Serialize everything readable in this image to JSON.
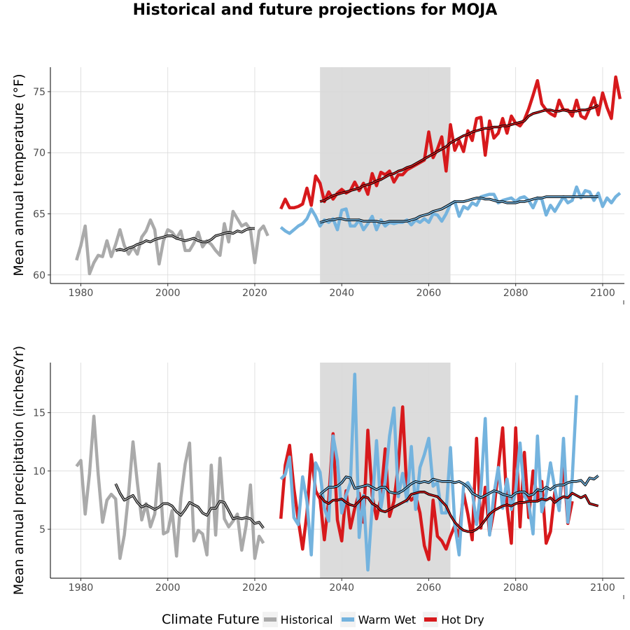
{
  "title": "Historical and future projections for MOJA",
  "legend": {
    "title": "Climate Future",
    "items": [
      {
        "label": "Historical",
        "color": "#aaaaaa"
      },
      {
        "label": "Warm Wet",
        "color": "#74b3de"
      },
      {
        "label": "Hot Dry",
        "color": "#d7191c"
      }
    ]
  },
  "chart_data": [
    {
      "type": "line",
      "ylabel": "Mean annual temperature (°F)",
      "xlim": [
        1973,
        2105
      ],
      "ylim": [
        59.3,
        77
      ],
      "x_ticks": [
        1980,
        2000,
        2020,
        2040,
        2060,
        2080,
        2100
      ],
      "y_ticks": [
        60,
        65,
        70,
        75
      ],
      "grid": true,
      "shaded_period": [
        2035,
        2065
      ],
      "series": [
        {
          "name": "Historical",
          "color": "#aaaaaa",
          "x_start": 1979,
          "values": [
            61.2,
            62.4,
            64.0,
            60.1,
            61.0,
            61.6,
            61.5,
            62.8,
            61.5,
            62.5,
            63.7,
            62.4,
            61.7,
            62.3,
            61.7,
            63.1,
            63.6,
            64.5,
            63.7,
            60.9,
            62.8,
            63.7,
            63.5,
            63.0,
            63.6,
            62.0,
            62.0,
            62.6,
            63.5,
            62.3,
            62.8,
            62.5,
            62.0,
            61.6,
            64.2,
            62.7,
            65.2,
            64.6,
            64.0,
            64.2,
            63.7,
            61.0,
            63.6,
            64.0,
            63.2
          ]
        },
        {
          "name": "Hot Dry",
          "color": "#d7191c",
          "x_start": 2026,
          "values": [
            65.4,
            66.2,
            65.5,
            65.5,
            65.6,
            65.8,
            67.1,
            65.7,
            68.1,
            67.5,
            66.0,
            66.8,
            66.2,
            66.7,
            67.0,
            66.7,
            66.9,
            67.6,
            66.9,
            67.5,
            66.6,
            68.3,
            67.3,
            68.4,
            68.2,
            68.5,
            67.6,
            68.2,
            68.2,
            68.6,
            68.8,
            69.0,
            69.2,
            69.4,
            71.7,
            69.6,
            70.3,
            71.3,
            68.5,
            72.3,
            70.2,
            71.0,
            70.1,
            71.8,
            71.0,
            72.8,
            72.9,
            69.8,
            72.6,
            71.2,
            71.6,
            72.8,
            71.6,
            73.0,
            72.4,
            72.2,
            72.7,
            73.6,
            74.7,
            75.9,
            74.0,
            73.5,
            73.2,
            73.0,
            74.3,
            73.5,
            73.5,
            73.0,
            74.3,
            73.0,
            72.8,
            73.6,
            74.5,
            73.1,
            74.9,
            73.7,
            72.8,
            76.2,
            74.4
          ]
        },
        {
          "name": "Warm Wet",
          "color": "#74b3de",
          "x_start": 2026,
          "values": [
            63.9,
            63.6,
            63.4,
            63.7,
            64.0,
            64.2,
            64.6,
            65.4,
            64.8,
            64.0,
            64.5,
            64.3,
            64.6,
            63.7,
            65.3,
            65.4,
            64.0,
            64.0,
            64.5,
            63.7,
            64.2,
            64.8,
            63.7,
            64.5,
            64.0,
            64.3,
            64.2,
            64.3,
            64.3,
            64.5,
            64.1,
            64.5,
            64.3,
            64.6,
            64.3,
            65.0,
            64.9,
            64.4,
            65.0,
            65.8,
            66.0,
            64.8,
            65.6,
            65.4,
            65.9,
            65.7,
            66.4,
            66.5,
            66.6,
            66.6,
            65.9,
            66.1,
            66.2,
            66.3,
            66.0,
            66.3,
            66.4,
            66.1,
            65.5,
            66.3,
            66.2,
            64.9,
            65.7,
            65.2,
            65.8,
            66.4,
            65.9,
            66.1,
            67.2,
            66.3,
            66.9,
            66.8,
            66.1,
            66.7,
            65.6,
            66.3,
            65.9,
            66.4,
            66.7
          ]
        },
        {
          "name": "",
          "color": "#000000",
          "x_start": 1988,
          "values": [
            62.0,
            62.1,
            62.0,
            62.2,
            62.3,
            62.5,
            62.6,
            62.8,
            62.7,
            62.9,
            63.0,
            63.1,
            63.2,
            63.2,
            63.0,
            62.9,
            62.8,
            62.9,
            63.0,
            62.8,
            62.7,
            62.7,
            62.9,
            63.2,
            63.3,
            63.4,
            63.5,
            63.4,
            63.6,
            63.5,
            63.7,
            63.8,
            63.8
          ]
        },
        {
          "name": "",
          "color": "#000000",
          "x_start": 2035,
          "values": [
            66.0,
            66.1,
            66.3,
            66.5,
            66.6,
            66.7,
            66.8,
            66.9,
            67.0,
            67.1,
            67.3,
            67.4,
            67.5,
            67.7,
            67.8,
            68.0,
            68.2,
            68.3,
            68.5,
            68.6,
            68.8,
            68.9,
            69.1,
            69.3,
            69.5,
            69.7,
            69.9,
            70.1,
            70.3,
            70.5,
            70.8,
            71.0,
            71.2,
            71.4,
            71.5,
            71.7,
            71.8,
            71.9,
            72.0,
            72.0,
            72.1,
            72.1,
            72.2,
            72.2,
            72.3,
            72.4,
            72.5,
            72.6,
            73.0,
            73.2,
            73.3,
            73.4,
            73.5,
            73.5,
            73.4,
            73.4,
            73.5,
            73.4,
            73.4,
            73.4,
            73.5,
            73.5,
            73.6,
            73.7,
            73.9
          ]
        },
        {
          "name": "",
          "color": "#000000",
          "x_start": 2035,
          "values": [
            64.3,
            64.4,
            64.5,
            64.5,
            64.6,
            64.6,
            64.5,
            64.5,
            64.5,
            64.5,
            64.4,
            64.4,
            64.4,
            64.4,
            64.3,
            64.3,
            64.4,
            64.4,
            64.4,
            64.4,
            64.4,
            64.5,
            64.6,
            64.8,
            64.9,
            65.0,
            65.2,
            65.3,
            65.4,
            65.6,
            65.8,
            66.0,
            66.0,
            66.0,
            66.1,
            66.2,
            66.3,
            66.3,
            66.2,
            66.2,
            66.1,
            66.0,
            66.0,
            65.9,
            65.9,
            65.9,
            66.0,
            66.0,
            66.1,
            66.2,
            66.3,
            66.3,
            66.4,
            66.4,
            66.4,
            66.4,
            66.4,
            66.4,
            66.4,
            66.4,
            66.4,
            66.4,
            66.4,
            66.4,
            66.4
          ]
        }
      ]
    },
    {
      "type": "line",
      "ylabel": "Mean annual precipitation (inches/Yr)",
      "xlim": [
        1973,
        2105
      ],
      "ylim": [
        0.8,
        19.3
      ],
      "x_ticks": [
        1980,
        2000,
        2020,
        2040,
        2060,
        2080,
        2100
      ],
      "y_ticks": [
        5,
        10,
        15
      ],
      "grid": true,
      "shaded_period": [
        2035,
        2065
      ],
      "series": [
        {
          "name": "Historical",
          "color": "#aaaaaa",
          "x_start": 1979,
          "values": [
            10.4,
            10.9,
            6.3,
            9.8,
            14.7,
            9.7,
            5.6,
            7.5,
            8.0,
            7.6,
            2.5,
            4.5,
            8.1,
            12.5,
            9.0,
            5.8,
            7.2,
            5.2,
            6.3,
            10.6,
            4.6,
            4.8,
            6.6,
            2.7,
            7.7,
            10.6,
            12.4,
            4.0,
            4.9,
            4.6,
            2.8,
            10.5,
            4.5,
            11.1,
            5.9,
            5.2,
            5.7,
            6.3,
            3.2,
            5.3,
            8.8,
            2.5,
            4.4,
            3.8
          ]
        },
        {
          "name": "Hot Dry",
          "color": "#d7191c",
          "x_start": 2026,
          "values": [
            5.9,
            10.5,
            12.2,
            8.5,
            5.8,
            3.3,
            6.4,
            11.4,
            8.3,
            7.6,
            4.1,
            7.5,
            13.2,
            5.8,
            4.0,
            8.3,
            5.1,
            6.8,
            8.1,
            5.6,
            13.5,
            7.9,
            5.9,
            7.7,
            11.9,
            6.1,
            7.4,
            10.5,
            15.5,
            8.0,
            7.5,
            7.9,
            6.4,
            3.6,
            2.4,
            7.5,
            4.4,
            4.0,
            3.3,
            4.4,
            5.3,
            4.4,
            8.1,
            6.3,
            4.1,
            12.8,
            5.1,
            8.6,
            4.6,
            6.6,
            10.2,
            13.7,
            7.0,
            3.8,
            13.7,
            5.2,
            11.6,
            6.0,
            10.0,
            7.5,
            9.1,
            3.8,
            4.8,
            8.2,
            6.8,
            10.8,
            5.5,
            7.4
          ]
        },
        {
          "name": "Warm Wet",
          "color": "#74b3de",
          "x_start": 2026,
          "values": [
            9.3,
            9.7,
            11.2,
            6.0,
            5.4,
            9.5,
            7.4,
            2.8,
            10.7,
            9.9,
            6.8,
            5.7,
            13.0,
            10.9,
            6.4,
            7.9,
            9.0,
            18.3,
            4.3,
            7.9,
            1.5,
            7.0,
            12.6,
            6.8,
            9.1,
            13.0,
            15.4,
            7.8,
            9.8,
            7.4,
            12.1,
            6.7,
            10.3,
            11.4,
            12.8,
            8.7,
            9.0,
            6.4,
            6.4,
            12.0,
            5.4,
            2.8,
            8.7,
            9.0,
            8.3,
            5.4,
            8.4,
            14.5,
            4.5,
            8.0,
            10.3,
            6.8,
            9.3,
            6.7,
            8.3,
            12.4,
            7.9,
            7.2,
            4.6,
            13.0,
            6.5,
            8.0,
            10.7,
            8.5,
            6.6,
            12.8,
            5.6,
            9.4,
            16.5
          ]
        },
        {
          "name": "",
          "color": "#000000",
          "x_start": 1988,
          "values": [
            8.9,
            8.1,
            7.5,
            7.7,
            7.9,
            7.3,
            6.9,
            7.1,
            6.9,
            6.7,
            6.9,
            7.2,
            7.2,
            7.0,
            6.5,
            6.2,
            6.7,
            7.3,
            7.1,
            6.9,
            6.4,
            6.2,
            6.8,
            6.8,
            7.4,
            7.3,
            6.6,
            5.9,
            6.0,
            5.9,
            6.0,
            5.9,
            5.5,
            5.6,
            5.1
          ]
        },
        {
          "name": "",
          "color": "#000000",
          "x_start": 2035,
          "values": [
            8.0,
            8.3,
            8.6,
            8.6,
            8.7,
            9.0,
            9.5,
            9.4,
            8.5,
            8.6,
            8.7,
            8.8,
            8.6,
            8.4,
            8.6,
            8.6,
            8.2,
            8.1,
            8.1,
            8.3,
            8.6,
            8.9,
            9.1,
            9.0,
            9.1,
            9.0,
            9.3,
            9.2,
            9.1,
            9.1,
            9.1,
            9.0,
            9.1,
            8.9,
            8.6,
            8.1,
            7.9,
            7.7,
            7.9,
            8.1,
            8.3,
            8.2,
            8.0,
            7.9,
            7.8,
            8.1,
            8.2,
            8.2,
            7.9,
            8.0,
            8.4,
            8.3,
            8.6,
            8.4,
            8.7,
            8.8,
            8.8,
            9.0,
            9.1,
            9.1,
            9.2,
            8.8,
            9.4,
            9.3,
            9.6
          ]
        },
        {
          "name": "",
          "color": "#000000",
          "x_start": 2035,
          "values": [
            7.9,
            7.4,
            7.2,
            7.5,
            7.5,
            7.6,
            7.3,
            7.1,
            7.0,
            7.4,
            7.8,
            7.7,
            7.2,
            7.0,
            6.6,
            6.5,
            6.7,
            6.9,
            7.1,
            7.3,
            7.5,
            8.0,
            8.1,
            8.2,
            8.2,
            8.0,
            7.9,
            7.8,
            7.4,
            7.0,
            6.2,
            5.6,
            5.2,
            4.9,
            4.8,
            4.8,
            5.0,
            5.3,
            5.8,
            6.3,
            6.6,
            6.8,
            7.0,
            7.1,
            7.0,
            7.2,
            7.3,
            7.3,
            7.4,
            7.4,
            7.4,
            7.6,
            7.5,
            7.7,
            7.3,
            7.6,
            7.8,
            7.7,
            8.1,
            7.9,
            7.7,
            7.9,
            7.2,
            7.1,
            7.0
          ]
        }
      ]
    }
  ]
}
